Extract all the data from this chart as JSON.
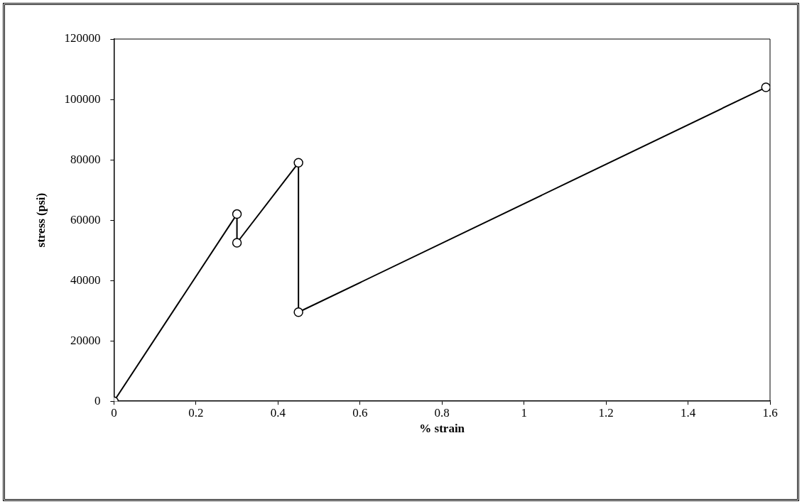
{
  "chart_data": {
    "type": "line",
    "xlabel": "% strain",
    "ylabel": "stress (psi)",
    "x": [
      0,
      0.3,
      0.3,
      0.45,
      0.45,
      1.59
    ],
    "series": [
      {
        "color": "#000000",
        "values": [
          0,
          62000,
          52500,
          79000,
          29500,
          104000
        ]
      }
    ],
    "xlim": [
      0,
      1.6
    ],
    "xticks": [
      0,
      0.2,
      0.4,
      0.6,
      0.8,
      1,
      1.2,
      1.4,
      1.6
    ],
    "ylim": [
      0,
      120000
    ],
    "yticks": [
      0,
      20000,
      40000,
      60000,
      80000,
      100000,
      120000
    ],
    "grid": false,
    "legend": false,
    "marker": "circle",
    "line_style": "solid"
  }
}
